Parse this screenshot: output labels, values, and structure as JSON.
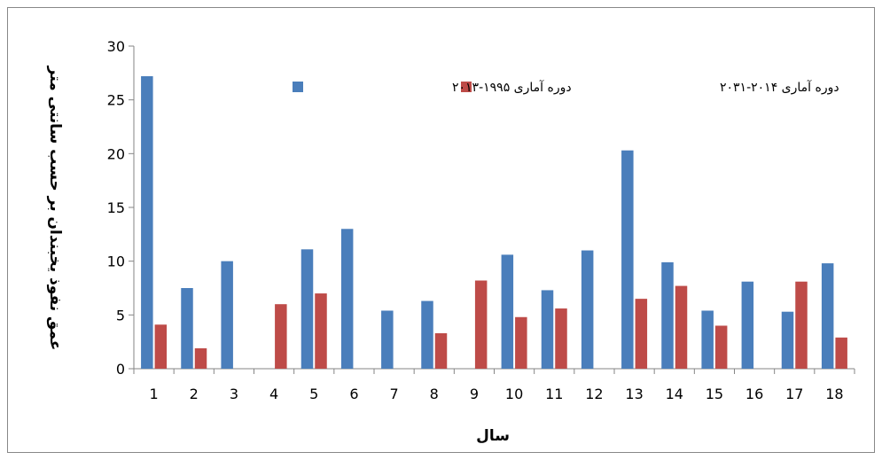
{
  "chart_data": {
    "type": "bar",
    "title": "",
    "xlabel": "سال",
    "ylabel": "عمق نفوذ یخبندان بر حسب سانتی متر",
    "ylim": [
      0,
      30
    ],
    "yticks": [
      0,
      5,
      10,
      15,
      20,
      25,
      30
    ],
    "grid": false,
    "legend_position": "top",
    "categories": [
      "1",
      "2",
      "3",
      "4",
      "5",
      "6",
      "7",
      "8",
      "9",
      "10",
      "11",
      "12",
      "13",
      "14",
      "15",
      "16",
      "17",
      "18"
    ],
    "series": [
      {
        "name": "دوره آماری ۱۹۹۵-۲۰۱۳",
        "color": "#4a7ebb",
        "values": [
          27.2,
          7.5,
          10.0,
          0,
          11.1,
          13.0,
          5.4,
          6.3,
          0,
          10.6,
          7.3,
          11.0,
          20.3,
          9.9,
          5.4,
          8.1,
          5.3,
          9.8
        ]
      },
      {
        "name": "دوره آماری ۲۰۱۴-۲۰۳۱",
        "color": "#be4b48",
        "values": [
          4.1,
          1.9,
          0,
          6.0,
          7.0,
          0,
          0,
          3.3,
          8.2,
          4.8,
          5.6,
          0,
          6.5,
          7.7,
          4.0,
          0,
          8.1,
          2.9
        ]
      }
    ]
  }
}
